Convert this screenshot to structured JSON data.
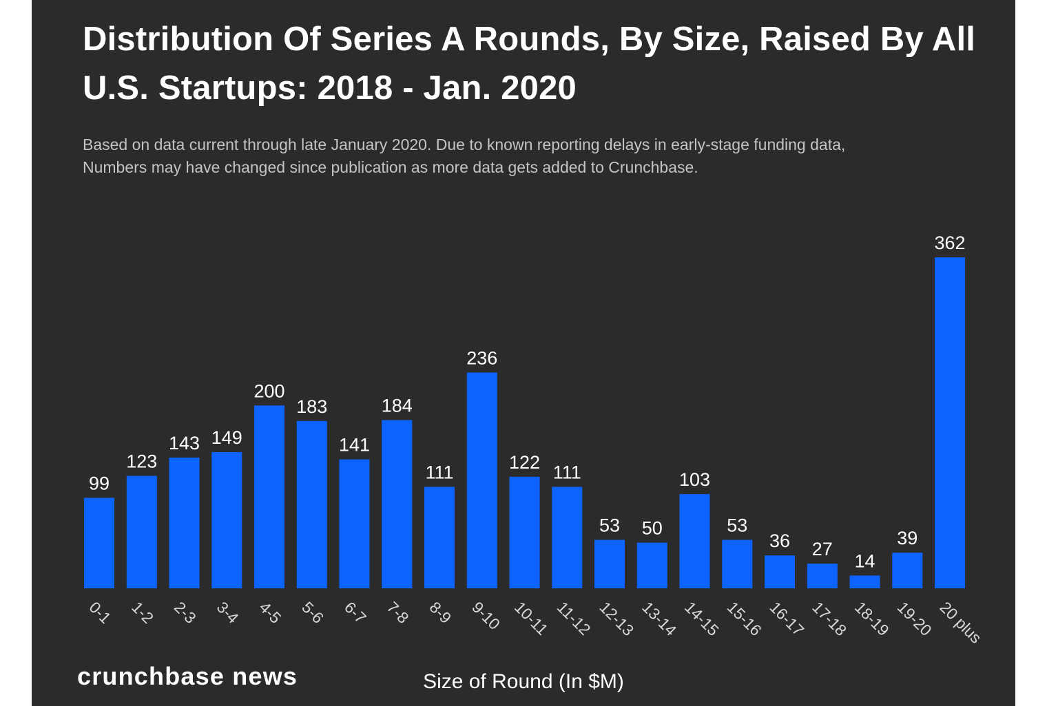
{
  "title": "Distribution Of Series A Rounds, By Size, Raised By All U.S. Startups: 2018 - Jan. 2020",
  "subtitle_line1": "Based on data current through late January 2020. Due to known reporting delays in early-stage funding data,",
  "subtitle_line2": "Numbers may have changed since publication as more data gets added to Crunchbase.",
  "brand": "crunchbase news",
  "colors": {
    "background": "#2b2b2b",
    "bar": "#0d63ff",
    "text": "#ffffff"
  },
  "chart_data": {
    "type": "bar",
    "categories": [
      "0-1",
      "1-2",
      "2-3",
      "3-4",
      "4-5",
      "5-6",
      "6-7",
      "7-8",
      "8-9",
      "9-10",
      "10-11",
      "11-12",
      "12-13",
      "13-14",
      "14-15",
      "15-16",
      "16-17",
      "17-18",
      "18-19",
      "19-20",
      "20 plus"
    ],
    "values": [
      99,
      123,
      143,
      149,
      200,
      183,
      141,
      184,
      111,
      236,
      122,
      111,
      53,
      50,
      103,
      53,
      36,
      27,
      14,
      39,
      362
    ],
    "xlabel": "Size of Round (In $M)",
    "ylabel": "",
    "ylim": [
      0,
      362
    ],
    "grid": false,
    "legend": "none",
    "data_labels": true
  }
}
